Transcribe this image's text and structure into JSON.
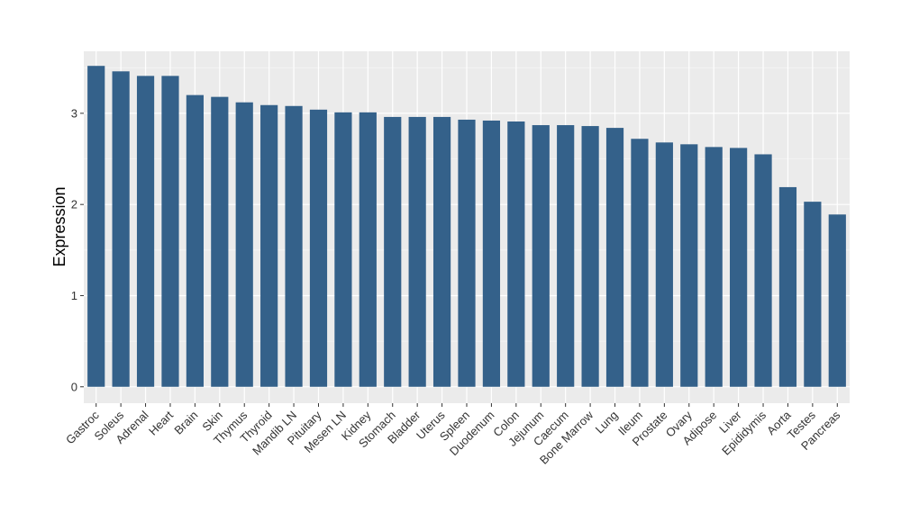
{
  "chart_data": {
    "type": "bar",
    "ylabel": "Expression",
    "xlabel": "",
    "categories": [
      "Gastroc",
      "Soleus",
      "Adrenal",
      "Heart",
      "Brain",
      "Skin",
      "Thymus",
      "Thyroid",
      "Mandib LN",
      "Pituitary",
      "Mesen LN",
      "Kidney",
      "Stomach",
      "Bladder",
      "Uterus",
      "Spleen",
      "Duodenum",
      "Colon",
      "Jejunum",
      "Caecum",
      "Bone Marrow",
      "Lung",
      "Ileum",
      "Prostate",
      "Ovary",
      "Adipose",
      "Liver",
      "Epididymis",
      "Aorta",
      "Testes",
      "Pancreas"
    ],
    "values": [
      3.52,
      3.46,
      3.41,
      3.41,
      3.2,
      3.18,
      3.12,
      3.09,
      3.08,
      3.04,
      3.01,
      3.01,
      2.96,
      2.96,
      2.96,
      2.93,
      2.92,
      2.91,
      2.87,
      2.87,
      2.86,
      2.84,
      2.72,
      2.68,
      2.66,
      2.63,
      2.62,
      2.55,
      2.19,
      2.03,
      1.89
    ],
    "yticks": [
      "0",
      "1",
      "2",
      "3"
    ],
    "ylim": [
      -0.18,
      3.68
    ],
    "grid": true,
    "bar_color": "#34618a",
    "panel_color": "#ebebeb"
  }
}
